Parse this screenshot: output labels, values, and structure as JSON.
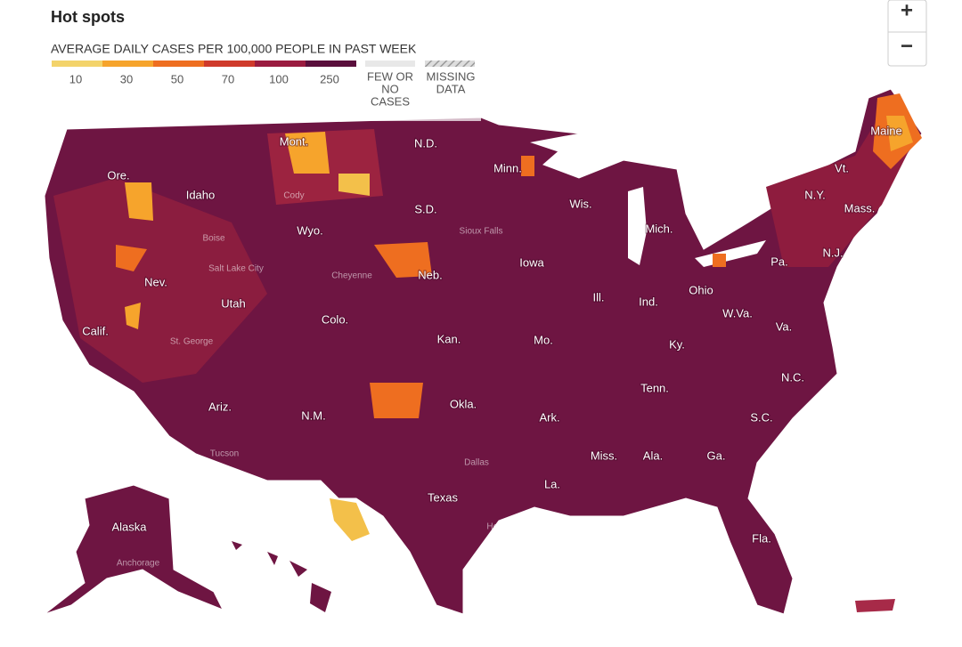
{
  "header": {
    "title": "Hot spots"
  },
  "legend": {
    "title": "AVERAGE DAILY CASES PER 100,000 PEOPLE IN PAST WEEK",
    "ticks": [
      10,
      30,
      50,
      70,
      100,
      250
    ],
    "colors": [
      "#f3d36a",
      "#f6a42c",
      "#ee6e20",
      "#cf3a2b",
      "#9a1c40",
      "#5a0f3c"
    ],
    "few_label": [
      "FEW OR",
      "NO",
      "CASES"
    ],
    "missing_label": [
      "MISSING",
      "DATA"
    ]
  },
  "controls": {
    "zoom_in": "+",
    "zoom_out": "−"
  },
  "map": {
    "state_labels": [
      "N.D.",
      "Minn.",
      "Wis.",
      "Mich.",
      "N.Y.",
      "Mass.",
      "Maine",
      "Vt.",
      "Ore.",
      "Idaho",
      "Mont.",
      "Wyo.",
      "S.D.",
      "Neb.",
      "Iowa",
      "Ill.",
      "Ind.",
      "Ohio",
      "Pa.",
      "N.J.",
      "Nev.",
      "Utah",
      "Colo.",
      "Kan.",
      "Mo.",
      "Ky.",
      "W.Va.",
      "Va.",
      "Calif.",
      "Ariz.",
      "N.M.",
      "Okla.",
      "Tenn.",
      "N.C.",
      "S.C.",
      "Ark.",
      "Miss.",
      "Ala.",
      "Ga.",
      "La.",
      "Texas",
      "Fla.",
      "Alaska"
    ],
    "city_labels": [
      "Cody",
      "Salt Lake City",
      "St. George",
      "Tucson",
      "Dallas",
      "Houston",
      "Anchorage",
      "Sioux Falls",
      "Cheyenne",
      "Boise"
    ]
  }
}
